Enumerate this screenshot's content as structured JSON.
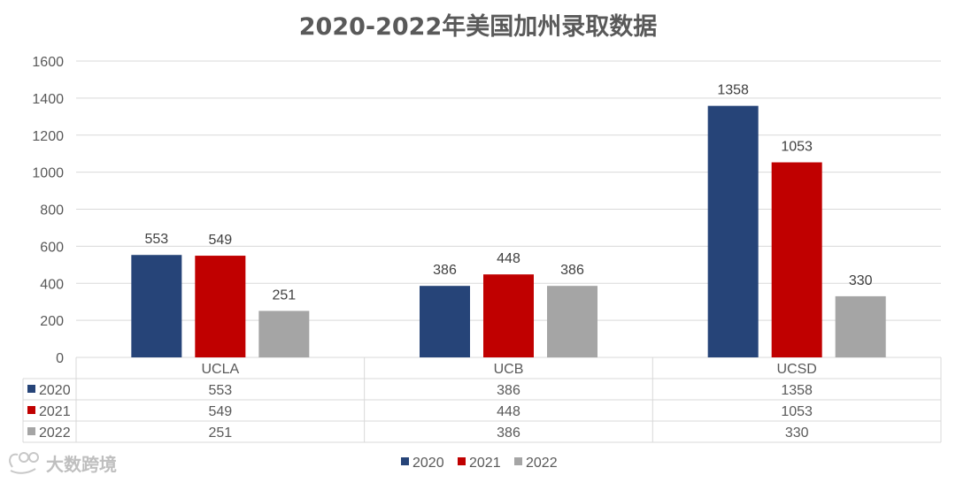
{
  "chart_data": {
    "type": "bar",
    "title": "2020-2022年美国加州录取数据",
    "categories": [
      "UCLA",
      "UCB",
      "UCSD"
    ],
    "series": [
      {
        "name": "2020",
        "values": [
          553,
          386,
          1358
        ],
        "color": "#264478"
      },
      {
        "name": "2021",
        "values": [
          549,
          448,
          1053
        ],
        "color": "#C00000"
      },
      {
        "name": "2022",
        "values": [
          251,
          386,
          330
        ],
        "color": "#A5A5A5"
      }
    ],
    "y_ticks": [
      "0",
      "200",
      "400",
      "600",
      "800",
      "1000",
      "1200",
      "1400",
      "1600"
    ],
    "ylim": [
      0,
      1600
    ],
    "grid": true,
    "data_table": true,
    "legend": "bottom"
  },
  "watermark": {
    "text": "大数跨境"
  }
}
